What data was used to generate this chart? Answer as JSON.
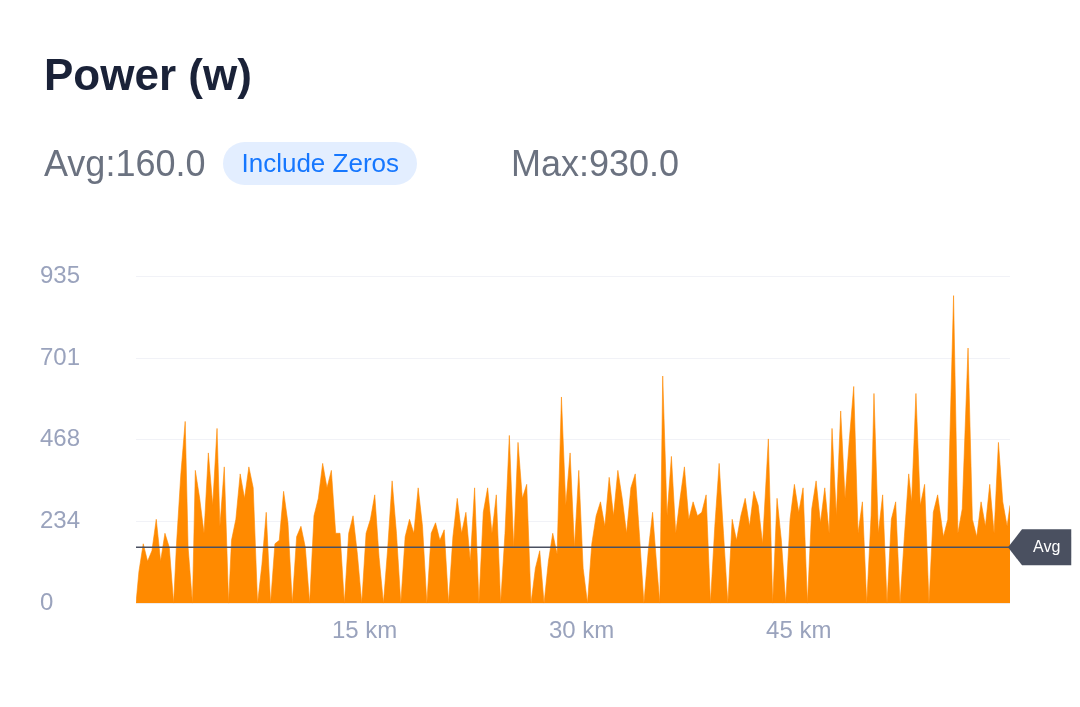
{
  "chart_data": {
    "type": "area",
    "title": "Power (w)",
    "annotations": [
      "Avg:160.0",
      "Include Zeros",
      "Max:930.0"
    ],
    "xlim": [
      -0.8,
      59.6
    ],
    "xticks": [
      {
        "value": 15,
        "label": "15 km"
      },
      {
        "value": 30,
        "label": "30 km"
      },
      {
        "value": 45,
        "label": "45 km"
      }
    ],
    "ylim": [
      0,
      935
    ],
    "yticks": [
      0,
      234,
      468,
      701,
      935
    ],
    "grid": "y",
    "legend": false,
    "x": [
      -0.8,
      -0.6,
      -0.3,
      0,
      0.3,
      0.6,
      0.9,
      1.2,
      1.5,
      1.8,
      2.0,
      2.3,
      2.6,
      2.8,
      3.1,
      3.3,
      3.6,
      3.9,
      4.2,
      4.5,
      4.8,
      5.0,
      5.3,
      5.6,
      5.8,
      6.1,
      6.4,
      6.7,
      7.0,
      7.3,
      7.6,
      7.9,
      8.2,
      8.5,
      8.8,
      9.1,
      9.4,
      9.7,
      10.0,
      10.3,
      10.6,
      10.9,
      11.2,
      11.5,
      11.8,
      12.1,
      12.4,
      12.7,
      13.0,
      13.3,
      13.6,
      13.9,
      14.2,
      14.5,
      14.8,
      15.1,
      15.4,
      15.7,
      16.0,
      16.3,
      16.6,
      16.9,
      17.2,
      17.5,
      17.8,
      18.1,
      18.4,
      18.7,
      19.0,
      19.3,
      19.6,
      19.9,
      20.2,
      20.5,
      20.8,
      21.1,
      21.4,
      21.7,
      22.0,
      22.3,
      22.6,
      22.9,
      23.2,
      23.5,
      23.8,
      24.1,
      24.4,
      24.7,
      25.0,
      25.3,
      25.6,
      25.9,
      26.2,
      26.5,
      26.8,
      27.1,
      27.4,
      27.7,
      28.0,
      28.3,
      28.6,
      28.9,
      29.2,
      29.5,
      29.8,
      30.1,
      30.4,
      30.7,
      31.0,
      31.3,
      31.6,
      31.9,
      32.2,
      32.5,
      32.8,
      33.1,
      33.4,
      33.7,
      34.0,
      34.3,
      34.6,
      34.9,
      35.2,
      35.4,
      35.6,
      35.9,
      36.2,
      36.5,
      36.8,
      37.1,
      37.4,
      37.7,
      38.0,
      38.3,
      38.6,
      38.9,
      39.2,
      39.5,
      39.8,
      40.1,
      40.4,
      40.7,
      41.0,
      41.3,
      41.6,
      41.9,
      42.2,
      42.5,
      42.9,
      43.2,
      43.5,
      43.8,
      44.1,
      44.4,
      44.7,
      45.0,
      45.3,
      45.6,
      45.9,
      46.2,
      46.5,
      46.8,
      47.1,
      47.3,
      47.6,
      47.9,
      48.2,
      48.5,
      48.8,
      49.1,
      49.4,
      49.7,
      50.0,
      50.2,
      50.5,
      50.8,
      51.1,
      51.4,
      51.7,
      52.0,
      52.3,
      52.6,
      52.8,
      53.1,
      53.4,
      53.7,
      54.0,
      54.3,
      54.6,
      55.0,
      55.3,
      55.7,
      56.0,
      56.3,
      56.7,
      57.0,
      57.3,
      57.6,
      57.9,
      58.2,
      58.5,
      58.8,
      59.1,
      59.4,
      59.6
    ],
    "series": [
      {
        "color": "#ff8a00",
        "values": [
          0,
          90,
          170,
          120,
          150,
          240,
          120,
          200,
          160,
          0,
          170,
          370,
          520,
          160,
          0,
          380,
          300,
          200,
          430,
          280,
          500,
          220,
          390,
          0,
          180,
          240,
          370,
          300,
          390,
          330,
          0,
          110,
          260,
          0,
          170,
          180,
          320,
          230,
          0,
          190,
          220,
          160,
          0,
          250,
          300,
          400,
          330,
          380,
          200,
          200,
          0,
          200,
          250,
          140,
          0,
          200,
          240,
          310,
          130,
          0,
          160,
          350,
          200,
          0,
          190,
          240,
          200,
          330,
          220,
          0,
          200,
          230,
          180,
          210,
          0,
          190,
          300,
          200,
          260,
          120,
          330,
          0,
          260,
          330,
          200,
          310,
          0,
          200,
          480,
          160,
          460,
          300,
          340,
          0,
          100,
          150,
          0,
          120,
          200,
          140,
          590,
          280,
          430,
          160,
          380,
          100,
          0,
          170,
          250,
          290,
          220,
          360,
          250,
          380,
          300,
          200,
          330,
          370,
          190,
          0,
          150,
          260,
          100,
          0,
          650,
          250,
          420,
          200,
          300,
          390,
          240,
          290,
          250,
          260,
          310,
          0,
          220,
          400,
          200,
          0,
          240,
          180,
          250,
          300,
          220,
          320,
          280,
          170,
          470,
          0,
          300,
          180,
          0,
          240,
          340,
          260,
          330,
          0,
          270,
          350,
          230,
          330,
          200,
          500,
          250,
          550,
          300,
          470,
          620,
          200,
          290,
          0,
          250,
          600,
          200,
          310,
          0,
          240,
          290,
          0,
          190,
          370,
          290,
          600,
          280,
          340,
          0,
          260,
          310,
          190,
          240,
          880,
          200,
          270,
          730,
          240,
          190,
          290,
          220,
          340,
          200,
          460,
          290,
          220,
          280
        ]
      }
    ],
    "ref_lines": [
      {
        "axis": "y",
        "value": 160,
        "label": "Avg",
        "color": "#4a5060"
      }
    ]
  }
}
